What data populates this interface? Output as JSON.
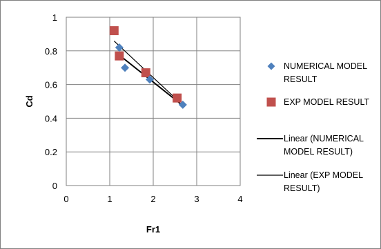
{
  "chart_data": {
    "type": "scatter",
    "xlabel": "Fr1",
    "ylabel": "Cd",
    "xlim": [
      0,
      4
    ],
    "ylim": [
      0,
      1
    ],
    "x_ticks": [
      "0",
      "1",
      "2",
      "3",
      "4"
    ],
    "y_ticks": [
      "0",
      "0.2",
      "0.4",
      "0.6",
      "0.8",
      "1"
    ],
    "grid": true,
    "legend_position": "right",
    "series": [
      {
        "name": "NUMERICAL MODEL RESULT",
        "legend_lines": [
          "NUMERICAL MODEL",
          "RESULT"
        ],
        "marker": "diamond",
        "color": "#4f81bd",
        "x": [
          1.22,
          1.35,
          1.92,
          2.68
        ],
        "y": [
          0.82,
          0.7,
          0.63,
          0.48
        ]
      },
      {
        "name": "EXP MODEL RESULT",
        "legend_lines": [
          "EXP MODEL RESULT"
        ],
        "marker": "square",
        "color": "#c0504d",
        "x": [
          1.1,
          1.22,
          1.83,
          2.55
        ],
        "y": [
          0.92,
          0.77,
          0.67,
          0.52
        ]
      }
    ],
    "trendlines": [
      {
        "name": "Linear (NUMERICAL MODEL RESULT)",
        "legend_lines": [
          "Linear (NUMERICAL",
          "MODEL RESULT)"
        ],
        "of_series": 0,
        "color": "#000000",
        "weight": "bold"
      },
      {
        "name": "Linear (EXP MODEL RESULT)",
        "legend_lines": [
          "Linear (EXP MODEL",
          "RESULT)"
        ],
        "of_series": 1,
        "color": "#000000",
        "weight": "thin"
      }
    ]
  }
}
